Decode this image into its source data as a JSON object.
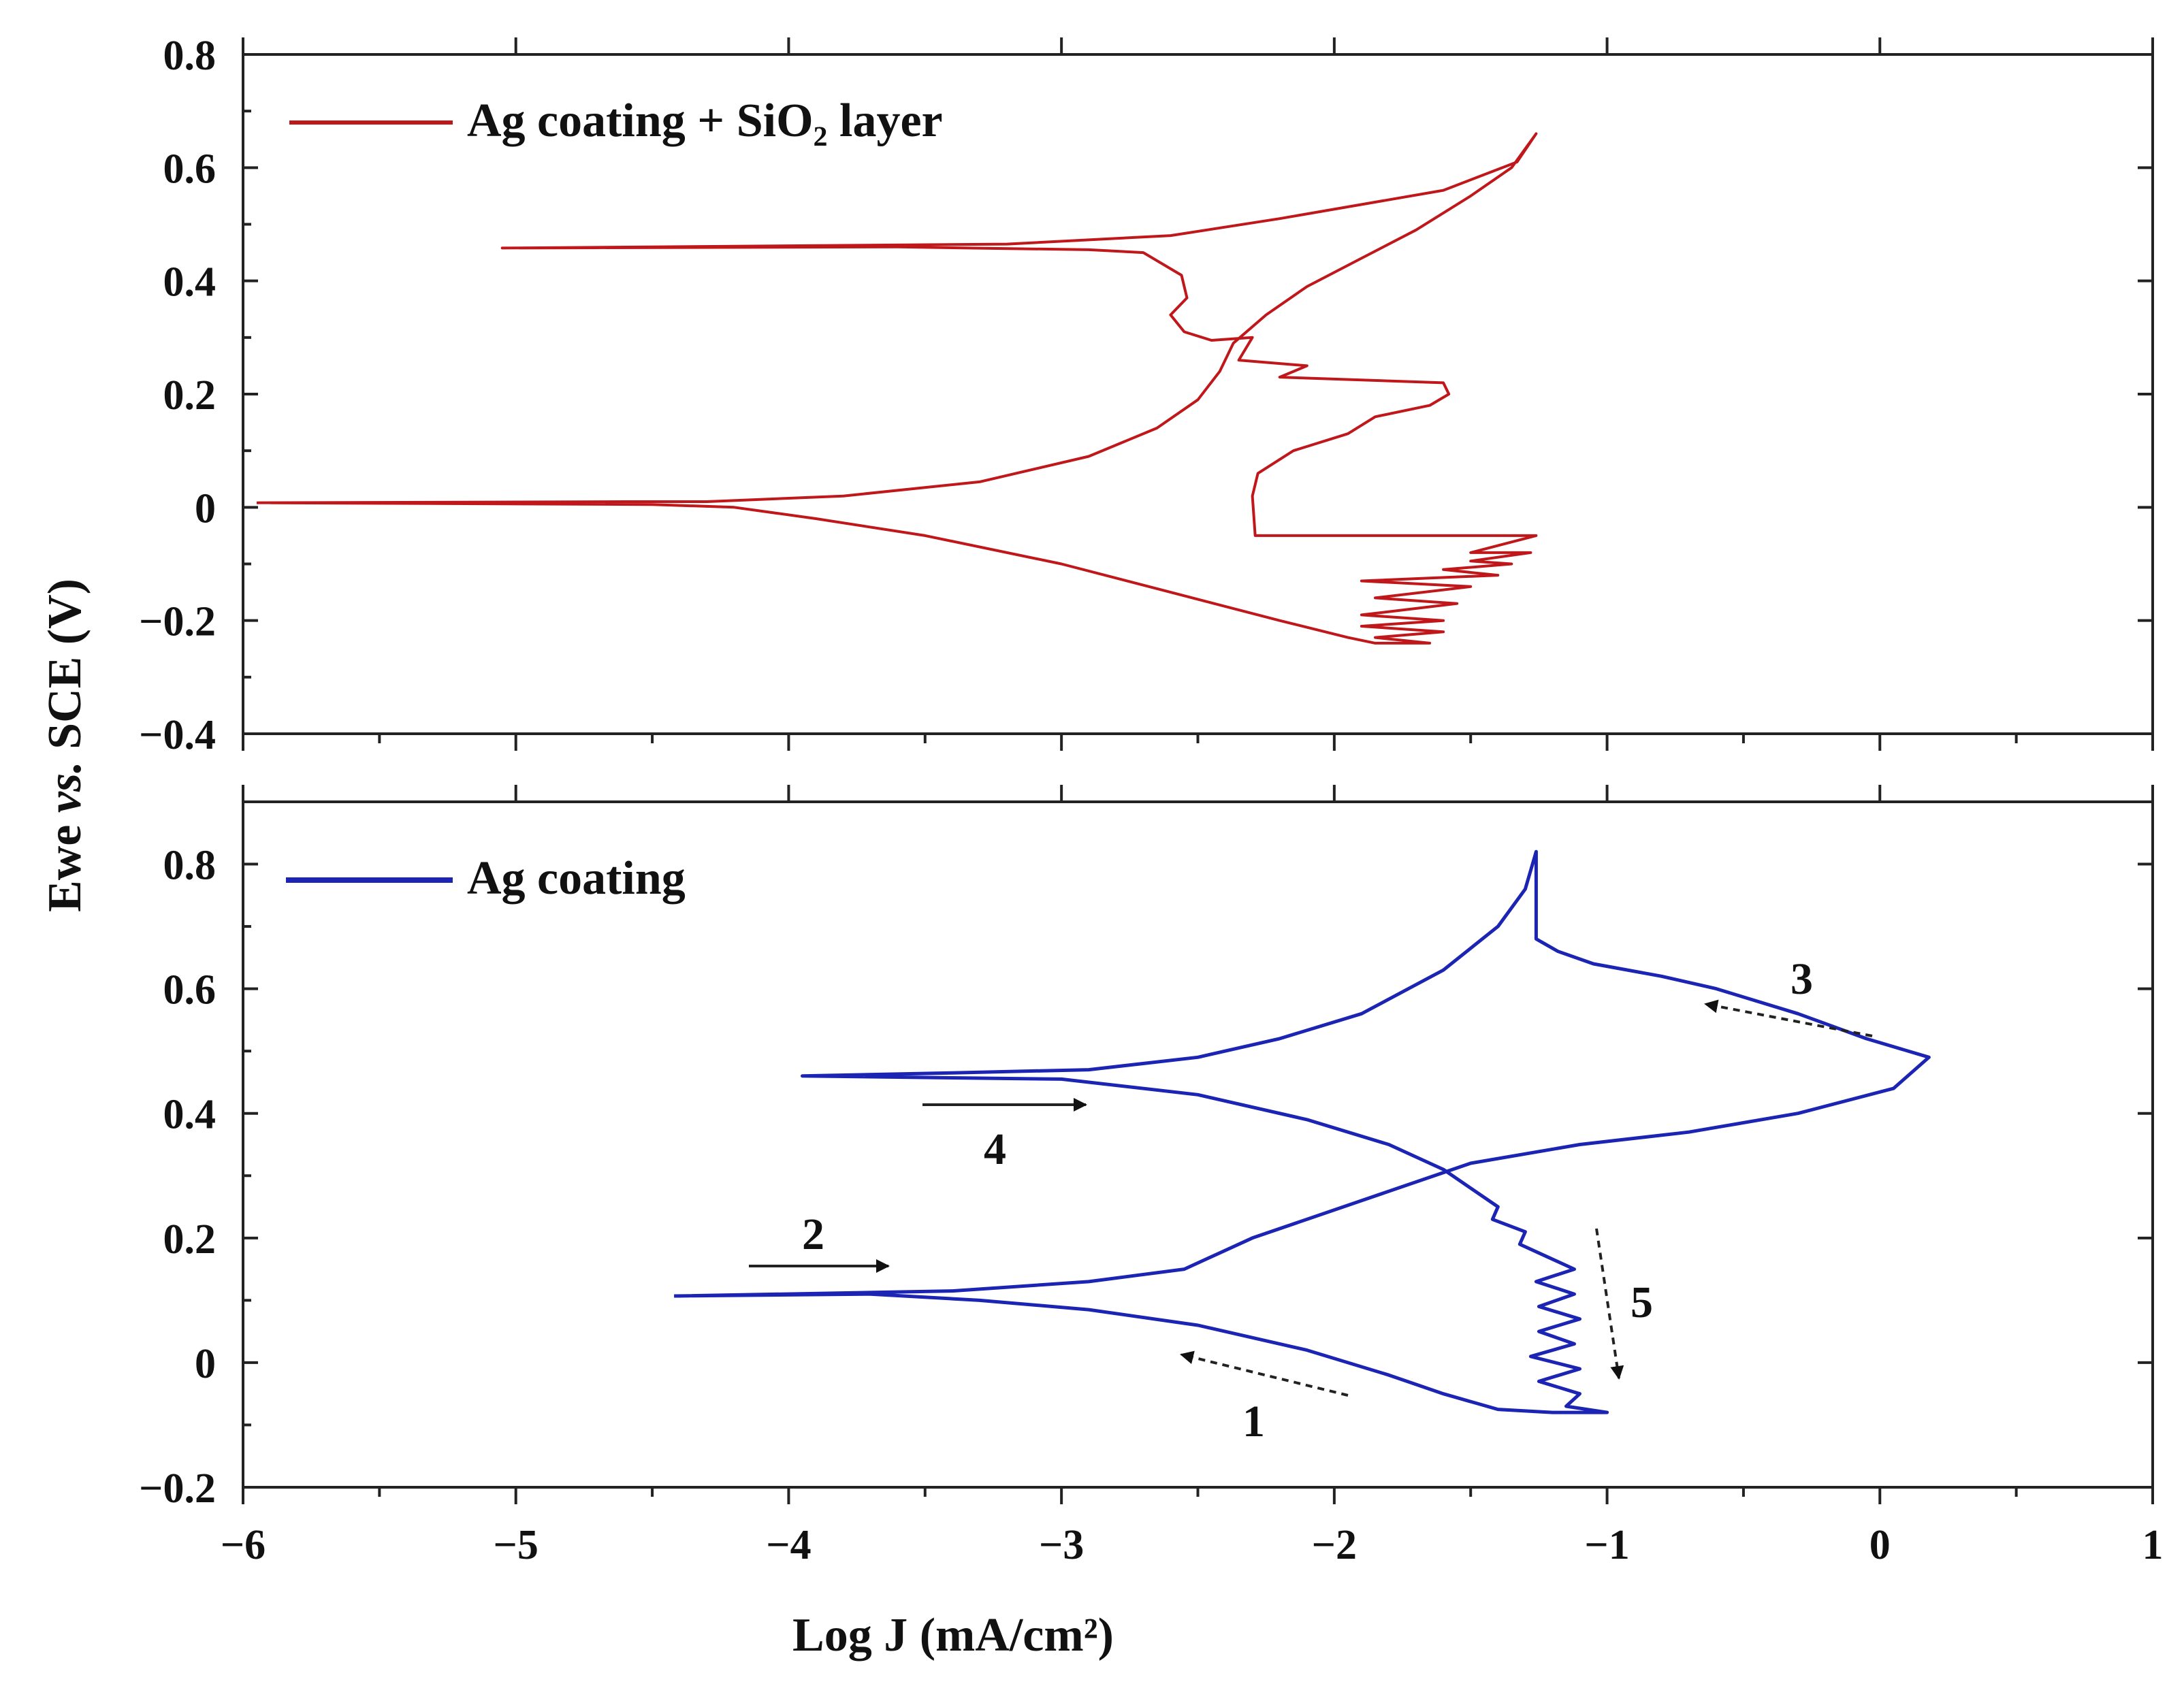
{
  "chart_data": [
    {
      "type": "line",
      "panel": "top",
      "legend": {
        "label": "Ag coating + SiO₂ layer",
        "color": "#c0171b",
        "placement": "top-left"
      },
      "xlim": [
        -6,
        1
      ],
      "ylim": [
        -0.4,
        0.8
      ],
      "y_ticks": [
        0.8,
        0.6,
        0.4,
        0.2,
        0,
        -0.2,
        -0.4
      ],
      "y_tick_labels": [
        "0.8",
        "0.6",
        "0.4",
        "0.2",
        "0",
        "−0.2",
        "−0.4"
      ],
      "series": [
        {
          "name": "Ag coating + SiO₂ layer",
          "color": "#c0171b",
          "points": [
            [
              -5.95,
              0.008
            ],
            [
              -4.6,
              0.01
            ],
            [
              -4.3,
              0.01
            ],
            [
              -3.8,
              0.02
            ],
            [
              -3.3,
              0.045
            ],
            [
              -2.9,
              0.09
            ],
            [
              -2.65,
              0.14
            ],
            [
              -2.5,
              0.19
            ],
            [
              -2.42,
              0.24
            ],
            [
              -2.37,
              0.29
            ],
            [
              -2.25,
              0.34
            ],
            [
              -2.1,
              0.39
            ],
            [
              -1.9,
              0.44
            ],
            [
              -1.7,
              0.49
            ],
            [
              -1.5,
              0.55
            ],
            [
              -1.35,
              0.6
            ],
            [
              -1.26,
              0.66
            ],
            [
              -1.33,
              0.61
            ],
            [
              -1.6,
              0.56
            ],
            [
              -2.2,
              0.51
            ],
            [
              -2.6,
              0.48
            ],
            [
              -3.2,
              0.465
            ],
            [
              -5.05,
              0.458
            ],
            [
              -3.6,
              0.46
            ],
            [
              -2.9,
              0.455
            ],
            [
              -2.7,
              0.45
            ],
            [
              -2.56,
              0.41
            ],
            [
              -2.54,
              0.37
            ],
            [
              -2.6,
              0.34
            ],
            [
              -2.55,
              0.31
            ],
            [
              -2.45,
              0.295
            ],
            [
              -2.3,
              0.3
            ],
            [
              -2.35,
              0.26
            ],
            [
              -2.1,
              0.25
            ],
            [
              -2.2,
              0.23
            ],
            [
              -1.6,
              0.22
            ],
            [
              -1.58,
              0.2
            ],
            [
              -1.65,
              0.18
            ],
            [
              -1.85,
              0.16
            ],
            [
              -1.95,
              0.13
            ],
            [
              -2.15,
              0.1
            ],
            [
              -2.28,
              0.06
            ],
            [
              -2.3,
              0.02
            ],
            [
              -2.29,
              -0.05
            ],
            [
              -1.26,
              -0.05
            ],
            [
              -1.38,
              -0.065
            ],
            [
              -1.5,
              -0.08
            ],
            [
              -1.28,
              -0.08
            ],
            [
              -1.5,
              -0.095
            ],
            [
              -1.35,
              -0.1
            ],
            [
              -1.6,
              -0.11
            ],
            [
              -1.4,
              -0.12
            ],
            [
              -1.9,
              -0.13
            ],
            [
              -1.5,
              -0.14
            ],
            [
              -1.85,
              -0.16
            ],
            [
              -1.55,
              -0.17
            ],
            [
              -1.9,
              -0.19
            ],
            [
              -1.6,
              -0.2
            ],
            [
              -1.9,
              -0.21
            ],
            [
              -1.6,
              -0.22
            ],
            [
              -1.85,
              -0.23
            ],
            [
              -1.65,
              -0.24
            ],
            [
              -1.85,
              -0.24
            ],
            [
              -1.95,
              -0.23
            ],
            [
              -2.2,
              -0.2
            ],
            [
              -2.6,
              -0.15
            ],
            [
              -3.0,
              -0.1
            ],
            [
              -3.5,
              -0.05
            ],
            [
              -3.9,
              -0.02
            ],
            [
              -4.2,
              0.0
            ],
            [
              -4.5,
              0.005
            ],
            [
              -5.9,
              0.008
            ]
          ]
        }
      ]
    },
    {
      "type": "line",
      "panel": "bottom",
      "legend": {
        "label": "Ag coating",
        "color": "#1c24b4",
        "placement": "top-left"
      },
      "xlim": [
        -6,
        1
      ],
      "ylim": [
        -0.2,
        0.9
      ],
      "y_ticks": [
        0.8,
        0.6,
        0.4,
        0.2,
        0,
        -0.2
      ],
      "y_tick_labels": [
        "0.8",
        "0.6",
        "0.4",
        "0.2",
        "0",
        "−0.2"
      ],
      "series": [
        {
          "name": "Ag coating",
          "color": "#1c24b4",
          "points": [
            [
              -4.42,
              0.107
            ],
            [
              -3.7,
              0.11
            ],
            [
              -3.3,
              0.1
            ],
            [
              -2.9,
              0.085
            ],
            [
              -2.5,
              0.06
            ],
            [
              -2.1,
              0.02
            ],
            [
              -1.8,
              -0.02
            ],
            [
              -1.6,
              -0.05
            ],
            [
              -1.4,
              -0.075
            ],
            [
              -1.2,
              -0.08
            ],
            [
              -1.0,
              -0.08
            ],
            [
              -1.15,
              -0.07
            ],
            [
              -1.1,
              -0.05
            ],
            [
              -1.25,
              -0.03
            ],
            [
              -1.1,
              -0.01
            ],
            [
              -1.28,
              0.01
            ],
            [
              -1.12,
              0.03
            ],
            [
              -1.25,
              0.05
            ],
            [
              -1.1,
              0.07
            ],
            [
              -1.25,
              0.09
            ],
            [
              -1.12,
              0.11
            ],
            [
              -1.26,
              0.13
            ],
            [
              -1.12,
              0.15
            ],
            [
              -1.22,
              0.17
            ],
            [
              -1.32,
              0.19
            ],
            [
              -1.3,
              0.21
            ],
            [
              -1.42,
              0.23
            ],
            [
              -1.4,
              0.25
            ],
            [
              -1.5,
              0.28
            ],
            [
              -1.6,
              0.31
            ],
            [
              -1.8,
              0.35
            ],
            [
              -2.1,
              0.39
            ],
            [
              -2.5,
              0.43
            ],
            [
              -3.0,
              0.455
            ],
            [
              -3.95,
              0.46
            ],
            [
              -3.4,
              0.465
            ],
            [
              -2.9,
              0.47
            ],
            [
              -2.5,
              0.49
            ],
            [
              -2.2,
              0.52
            ],
            [
              -1.9,
              0.56
            ],
            [
              -1.6,
              0.63
            ],
            [
              -1.4,
              0.7
            ],
            [
              -1.3,
              0.76
            ],
            [
              -1.26,
              0.82
            ],
            [
              -1.26,
              0.68
            ],
            [
              -1.18,
              0.66
            ],
            [
              -1.05,
              0.64
            ],
            [
              -0.8,
              0.62
            ],
            [
              -0.6,
              0.6
            ],
            [
              -0.3,
              0.56
            ],
            [
              -0.05,
              0.52
            ],
            [
              0.18,
              0.49
            ],
            [
              0.05,
              0.44
            ],
            [
              -0.3,
              0.4
            ],
            [
              -0.7,
              0.37
            ],
            [
              -1.1,
              0.35
            ],
            [
              -1.5,
              0.32
            ],
            [
              -1.9,
              0.26
            ],
            [
              -2.3,
              0.2
            ],
            [
              -2.55,
              0.15
            ],
            [
              -2.9,
              0.13
            ],
            [
              -3.4,
              0.115
            ],
            [
              -4.4,
              0.107
            ]
          ]
        }
      ],
      "annotations": [
        {
          "label": "1",
          "x": -1.32,
          "y": -0.12
        },
        {
          "label": "2",
          "x": -3.95,
          "y": 0.2
        },
        {
          "label": "3",
          "x": -0.25,
          "y": 0.6
        },
        {
          "label": "4",
          "x": -3.25,
          "y": 0.34
        },
        {
          "label": "5",
          "x": -0.86,
          "y": 0.1
        }
      ]
    }
  ],
  "x_axis": {
    "label": "Log J (mA/cm²)",
    "ticks": [
      -6,
      -5,
      -4,
      -3,
      -2,
      -1,
      0,
      1
    ],
    "tick_labels": [
      "−6",
      "−5",
      "−4",
      "−3",
      "−2",
      "−1",
      "0",
      "1"
    ]
  },
  "y_axis": {
    "label_prefix": "Ewe ",
    "label_italic": "vs.",
    "label_suffix": " SCE (V)"
  }
}
